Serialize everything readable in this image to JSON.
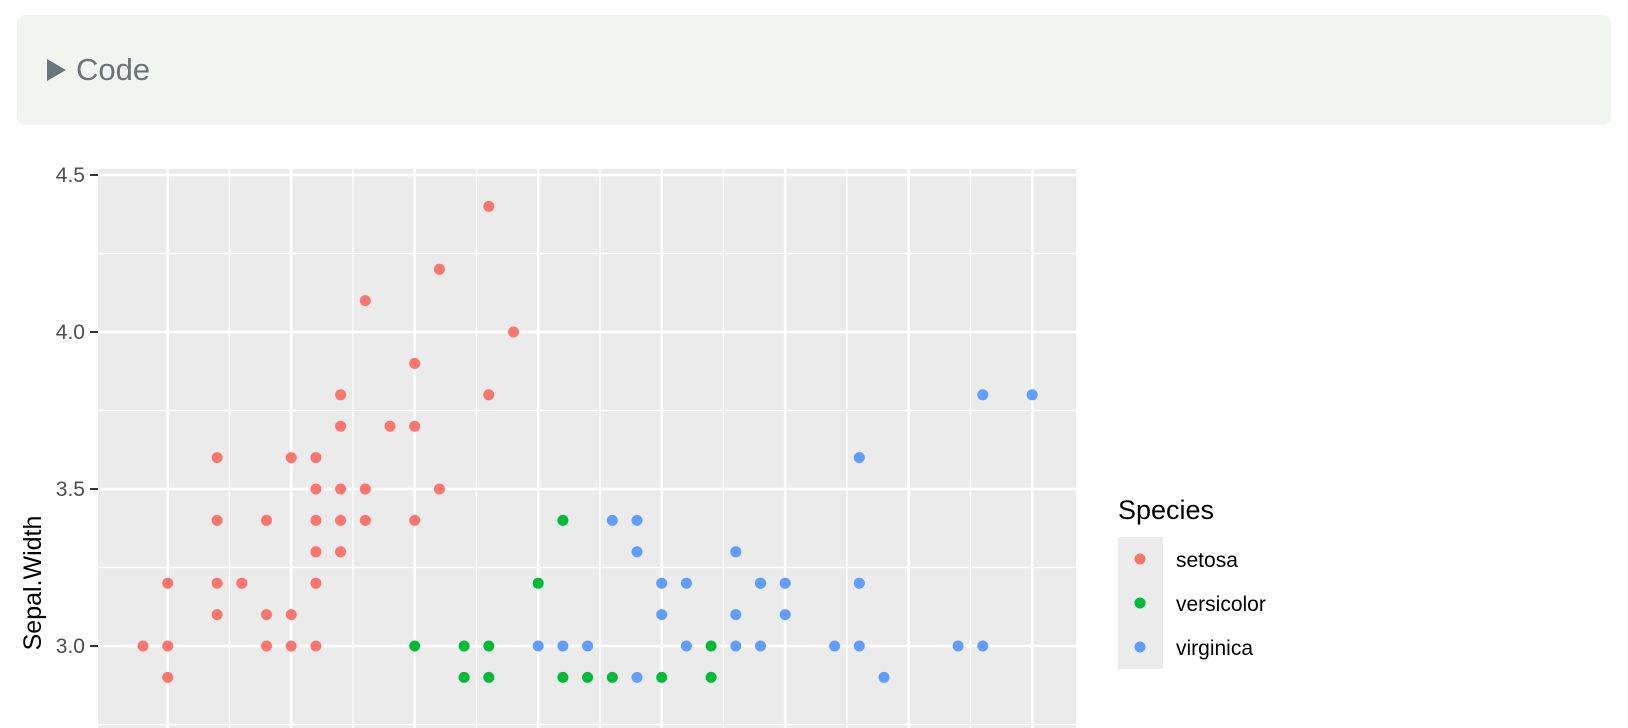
{
  "code_fold": {
    "label": "Code"
  },
  "chart_data": {
    "type": "scatter",
    "ylabel": "Sepal.Width",
    "y_ticks": [
      "3.0",
      "3.5",
      "4.0",
      "4.5"
    ],
    "y_tick_values": [
      3.0,
      3.5,
      4.0,
      4.5
    ],
    "xlim": [
      4.3,
      8.0
    ],
    "ylim": [
      2.9,
      4.5
    ],
    "grid": true,
    "legend": {
      "title": "Species",
      "placement": "right",
      "entries": [
        "setosa",
        "versicolor",
        "virginica"
      ]
    },
    "colors": {
      "setosa": "#F8766D",
      "versicolor": "#00BA38",
      "virginica": "#619CFF",
      "panel_bg": "#EBEBEB",
      "grid_line": "#FFFFFF"
    },
    "series": [
      {
        "name": "setosa",
        "points": [
          [
            4.4,
            3.0
          ],
          [
            4.5,
            3.0
          ],
          [
            4.5,
            3.2
          ],
          [
            4.5,
            2.9
          ],
          [
            4.7,
            3.6
          ],
          [
            4.7,
            3.4
          ],
          [
            4.7,
            3.2
          ],
          [
            4.7,
            3.1
          ],
          [
            4.8,
            3.2
          ],
          [
            4.9,
            3.4
          ],
          [
            4.9,
            3.1
          ],
          [
            4.9,
            3.0
          ],
          [
            5.0,
            3.6
          ],
          [
            5.0,
            3.1
          ],
          [
            5.0,
            3.0
          ],
          [
            5.1,
            3.6
          ],
          [
            5.1,
            3.5
          ],
          [
            5.1,
            3.4
          ],
          [
            5.1,
            3.3
          ],
          [
            5.1,
            3.2
          ],
          [
            5.1,
            3.0
          ],
          [
            5.2,
            3.8
          ],
          [
            5.2,
            3.7
          ],
          [
            5.2,
            3.5
          ],
          [
            5.2,
            3.4
          ],
          [
            5.2,
            3.3
          ],
          [
            5.3,
            4.1
          ],
          [
            5.3,
            3.5
          ],
          [
            5.3,
            3.4
          ],
          [
            5.4,
            3.7
          ],
          [
            5.5,
            3.9
          ],
          [
            5.5,
            3.7
          ],
          [
            5.5,
            3.4
          ],
          [
            5.6,
            4.2
          ],
          [
            5.6,
            3.5
          ],
          [
            5.8,
            4.4
          ],
          [
            5.8,
            3.8
          ],
          [
            5.9,
            4.0
          ]
        ]
      },
      {
        "name": "versicolor",
        "points": [
          [
            5.5,
            3.0
          ],
          [
            5.7,
            3.0
          ],
          [
            5.7,
            2.9
          ],
          [
            5.8,
            3.0
          ],
          [
            5.8,
            2.9
          ],
          [
            6.0,
            3.2
          ],
          [
            6.1,
            3.4
          ],
          [
            6.1,
            2.9
          ],
          [
            6.2,
            2.9
          ],
          [
            6.3,
            2.9
          ],
          [
            6.5,
            2.9
          ],
          [
            6.7,
            3.0
          ],
          [
            6.7,
            2.9
          ],
          [
            6.9,
            3.2
          ]
        ]
      },
      {
        "name": "virginica",
        "points": [
          [
            6.0,
            3.0
          ],
          [
            6.1,
            3.0
          ],
          [
            6.2,
            3.0
          ],
          [
            6.3,
            3.4
          ],
          [
            6.4,
            3.4
          ],
          [
            6.4,
            3.3
          ],
          [
            6.4,
            2.9
          ],
          [
            6.5,
            3.2
          ],
          [
            6.5,
            3.1
          ],
          [
            6.6,
            3.2
          ],
          [
            6.6,
            3.0
          ],
          [
            6.8,
            3.3
          ],
          [
            6.8,
            3.1
          ],
          [
            6.8,
            3.0
          ],
          [
            6.9,
            3.2
          ],
          [
            6.9,
            3.0
          ],
          [
            7.0,
            3.2
          ],
          [
            7.0,
            3.1
          ],
          [
            7.2,
            3.0
          ],
          [
            7.3,
            3.6
          ],
          [
            7.3,
            3.2
          ],
          [
            7.3,
            3.0
          ],
          [
            7.4,
            2.9
          ],
          [
            7.7,
            3.0
          ],
          [
            7.8,
            3.8
          ],
          [
            7.8,
            3.0
          ],
          [
            8.0,
            3.8
          ]
        ]
      }
    ]
  }
}
